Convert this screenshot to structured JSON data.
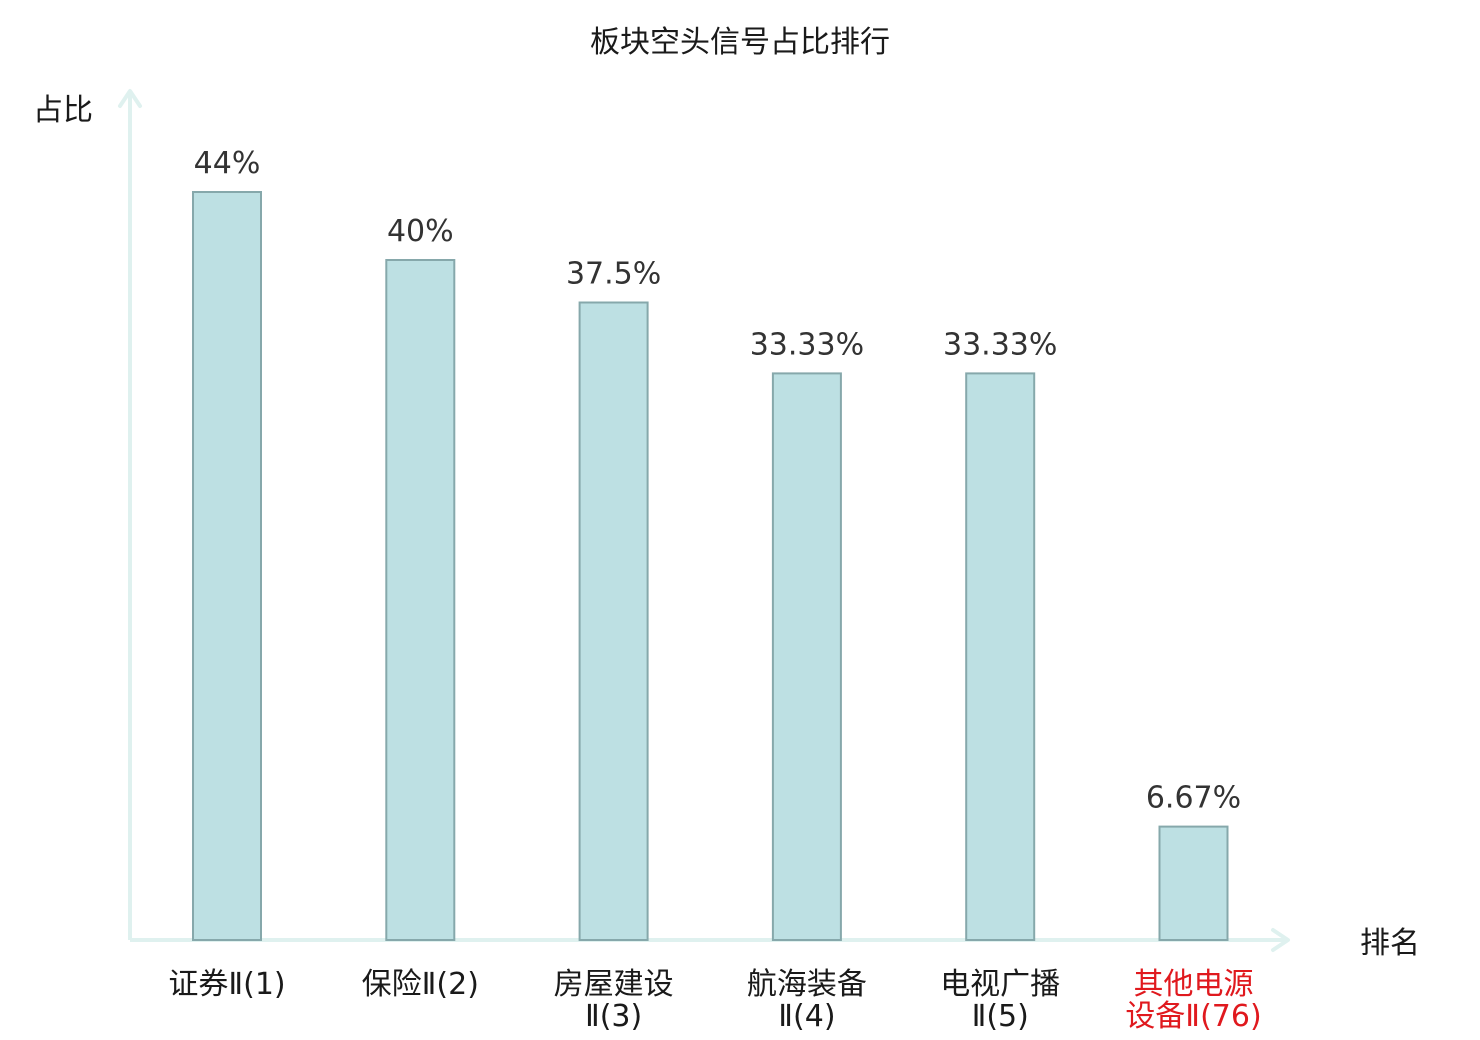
{
  "chart_data": {
    "type": "bar",
    "title": "板块空头信号占比排行",
    "ylabel": "占比",
    "xlabel": "排名",
    "ylim": [
      0,
      50
    ],
    "categories": [
      [
        "证券Ⅱ(1)"
      ],
      [
        "保险Ⅱ(2)"
      ],
      [
        "房屋建设",
        "Ⅱ(3)"
      ],
      [
        "航海装备",
        "Ⅱ(4)"
      ],
      [
        "电视广播",
        "Ⅱ(5)"
      ],
      [
        "其他电源",
        "设备Ⅱ(76)"
      ]
    ],
    "values": [
      44,
      40,
      37.5,
      33.33,
      33.33,
      6.67
    ],
    "value_labels": [
      "44%",
      "40%",
      "37.5%",
      "33.33%",
      "33.33%",
      "6.67%"
    ],
    "highlight_index": 5,
    "grid": false,
    "colors": {
      "bar_fill": "#bde0e3",
      "bar_stroke": "#86a8ab",
      "axis": "#dff1ef",
      "highlight_text": "#e0191e"
    }
  }
}
